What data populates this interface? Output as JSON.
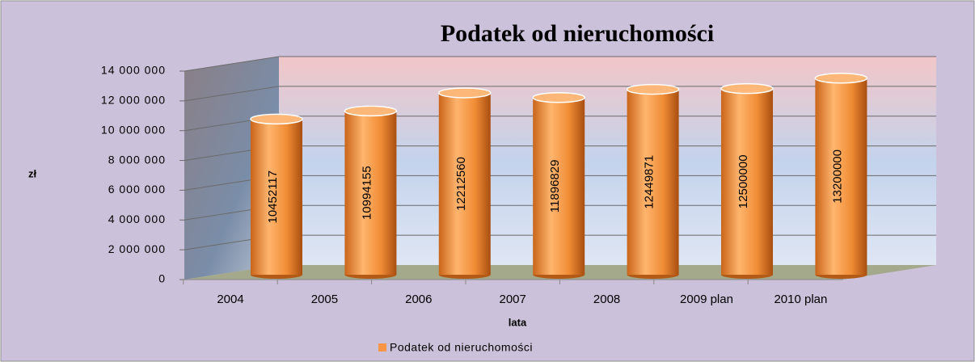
{
  "chart_data": {
    "type": "bar",
    "title": "Podatek od nieruchomości",
    "categories": [
      "2004",
      "2005",
      "2006",
      "2007",
      "2008",
      "2009 plan",
      "2010 plan"
    ],
    "series": [
      {
        "name": "Podatek od nieruchomości",
        "color": "#f79646",
        "values": [
          10452117,
          10994155,
          12212560,
          11896829,
          12449871,
          12500000,
          13200000
        ]
      }
    ],
    "ylim": [
      0,
      14000000
    ],
    "yticks": [
      0,
      {
        "value": 2000000,
        "label": "2 000 000"
      },
      {
        "value": 4000000,
        "label": "4 000 000"
      },
      {
        "value": 6000000,
        "label": "6 000 000"
      },
      {
        "value": 8000000,
        "label": "8 000 000"
      },
      {
        "value": 10000000,
        "label": "10 000 000"
      },
      {
        "value": 12000000,
        "label": "12 000 000"
      },
      {
        "value": 14000000,
        "label": "14 000 000"
      }
    ],
    "ylabel": "zł",
    "xlabel": "lata",
    "grid": true,
    "legend": "bottom"
  }
}
